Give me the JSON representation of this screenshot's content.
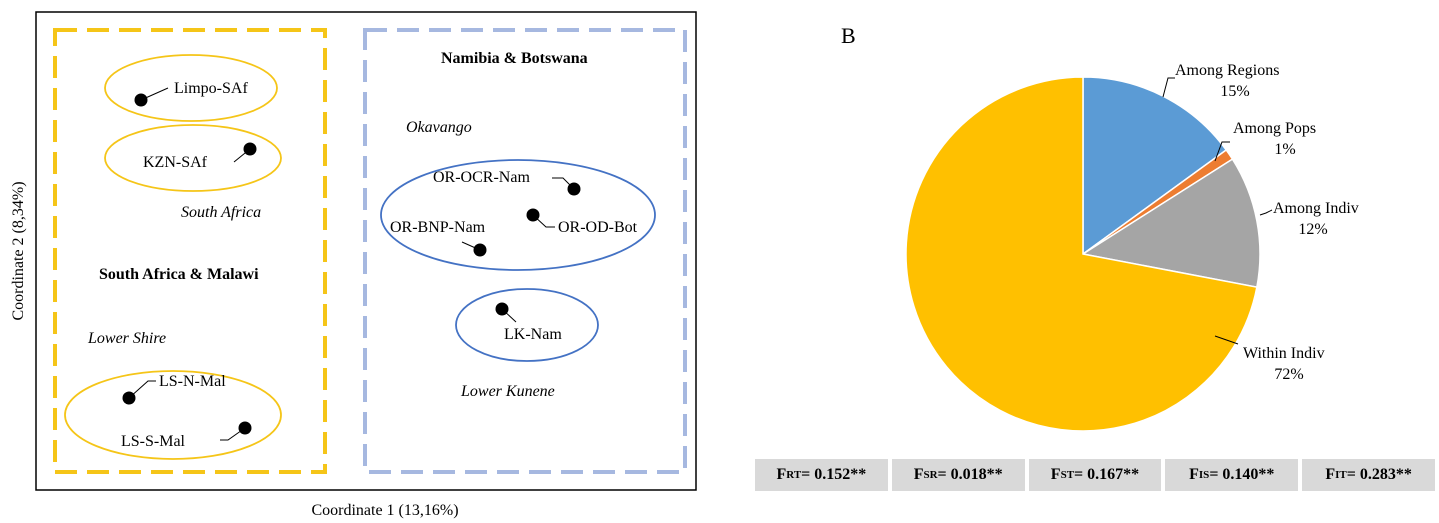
{
  "panel_a": {
    "xlabel": "Coordinate 1 (13,16%)",
    "ylabel": "Coordinate 2 (8,34%)",
    "group_left": "South Africa & Malawi",
    "group_right": "Namibia & Botswana",
    "region_labels": [
      "South Africa",
      "Lower Shire",
      "Okavango",
      "Lower Kunene"
    ],
    "points": [
      "Limpo-SAf",
      "KZN-SAf",
      "OR-OCR-Nam",
      "OR-OD-Bot",
      "OR-BNP-Nam",
      "LK-Nam",
      "LS-N-Mal",
      "LS-S-Mal"
    ],
    "colors": {
      "southern_group": "#F5C518",
      "northern_group": "#A6B8E0",
      "ellipse_blue": "#4472C4"
    }
  },
  "chart_data": {
    "type": "pie",
    "title": "B",
    "slices": [
      {
        "name": "Among Regions",
        "value": 15,
        "label": "15%",
        "color": "#5B9BD5"
      },
      {
        "name": "Among Pops",
        "value": 1,
        "label": "1%",
        "color": "#ED7D31"
      },
      {
        "name": "Among Indiv",
        "value": 12,
        "label": "12%",
        "color": "#A5A5A5"
      },
      {
        "name": "Within Indiv",
        "value": 72,
        "label": "72%",
        "color": "#FFC000"
      }
    ]
  },
  "stats": [
    {
      "main": "F",
      "sub": "RT",
      "value": " = 0.152**"
    },
    {
      "main": "F",
      "sub": "SR",
      "value": " = 0.018**"
    },
    {
      "main": "F",
      "sub": "ST",
      "value": " = 0.167**"
    },
    {
      "main": "F",
      "sub": "IS",
      "value": " = 0.140**"
    },
    {
      "main": "F",
      "sub": "IT",
      "value": " = 0.283**"
    }
  ]
}
